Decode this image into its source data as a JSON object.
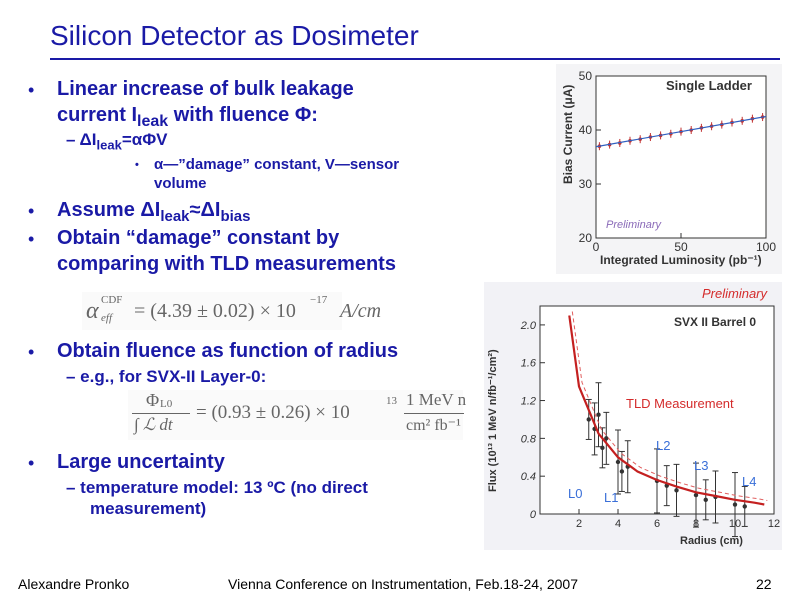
{
  "title": "Silicon Detector as Dosimeter",
  "bullets": {
    "b1_line1": "Linear increase of bulk leakage",
    "b1_line2_pre": "current I",
    "b1_line2_sub": "leak",
    "b1_line2_post": " with fluence Φ:",
    "sub1_pre": "ΔI",
    "sub1_sub": "leak",
    "sub1_post": "=αΦV",
    "subsub1_line1": "α—”damage” constant, V—sensor",
    "subsub1_line2": "volume",
    "b2_pre": "Assume ΔI",
    "b2_sub1": "leak",
    "b2_mid": "≈ΔI",
    "b2_sub2": "bias",
    "b3_line1": "Obtain “damage” constant by",
    "b3_line2": "comparing with TLD measurements",
    "b4": "Obtain fluence as function of radius",
    "sub2": "– e.g., for SVX-II Layer-0:",
    "b5": "Large uncertainty",
    "sub3_line1": "– temperature model: 13 ºC (no direct",
    "sub3_line2": "measurement)"
  },
  "formulas": {
    "f1_left": "α",
    "f1_sup": "CDF",
    "f1_sub": "eff",
    "f1_right": "= (4.39 ± 0.02) × 10",
    "f1_exp": "−17",
    "f1_unit": "A/cm",
    "f2_num": "Φ",
    "f2_num_sub": "L0",
    "f2_den": "∫ ℒ dt",
    "f2_mid": "= (0.93 ± 0.26) × 10",
    "f2_exp": "13",
    "f2_unit_num": "1 MeV n",
    "f2_unit_den": "cm² fb⁻¹"
  },
  "footer": {
    "author": "Alexandre Pronko",
    "conference": "Vienna Conference on Instrumentation, Feb.18-24, 2007",
    "page": "22"
  },
  "chart_data": [
    {
      "type": "scatter",
      "title": "Single Ladder",
      "annotation": "Preliminary",
      "xlabel": "Integrated Luminosity (pb⁻¹)",
      "ylabel": "Bias Current (μA)",
      "xlim": [
        0,
        100
      ],
      "ylim": [
        20,
        50
      ],
      "x_ticks": [
        "0",
        "50",
        "100"
      ],
      "y_ticks": [
        "20",
        "30",
        "40",
        "50"
      ],
      "series": [
        {
          "x": [
            2,
            8,
            14,
            20,
            26,
            32,
            38,
            44,
            50,
            56,
            62,
            68,
            74,
            80,
            86,
            92,
            98
          ],
          "y": [
            37.0,
            37.3,
            37.6,
            38.0,
            38.3,
            38.7,
            39.0,
            39.3,
            39.7,
            40.0,
            40.4,
            40.7,
            41.0,
            41.4,
            41.7,
            42.1,
            42.4
          ]
        }
      ],
      "grid": false
    },
    {
      "type": "scatter",
      "title": "SVX II Barrel 0",
      "annotations": [
        "Preliminary",
        "TLD Measurement",
        "L0",
        "L1",
        "L2",
        "L3",
        "L4"
      ],
      "xlabel": "Radius (cm)",
      "ylabel": "Flux (10¹³ 1 MeV n/fb⁻¹/cm²)",
      "xlim": [
        0,
        12
      ],
      "ylim": [
        0,
        2.2
      ],
      "x_ticks": [
        "2",
        "4",
        "6",
        "8",
        "10",
        "12"
      ],
      "y_ticks": [
        "0",
        "0.4",
        "0.8",
        "1.2",
        "1.6",
        "2.0"
      ],
      "series": [
        {
          "name": "TLD Measurement",
          "x": [
            2.5,
            2.8,
            3.0,
            3.2,
            3.4,
            4.0,
            4.2,
            4.5,
            6.0,
            6.5,
            7.0,
            8.0,
            8.5,
            9.0,
            10.0,
            10.5
          ],
          "y": [
            1.0,
            0.9,
            1.05,
            0.7,
            0.8,
            0.55,
            0.45,
            0.5,
            0.35,
            0.3,
            0.25,
            0.2,
            0.15,
            0.18,
            0.1,
            0.08
          ]
        },
        {
          "name": "Fit",
          "x": [
            1.5,
            2,
            3,
            4,
            5,
            6,
            7,
            8,
            9,
            10,
            11,
            11.5
          ],
          "y": [
            2.1,
            1.35,
            0.85,
            0.6,
            0.45,
            0.36,
            0.29,
            0.23,
            0.19,
            0.15,
            0.12,
            0.1
          ]
        }
      ],
      "grid": false
    }
  ]
}
